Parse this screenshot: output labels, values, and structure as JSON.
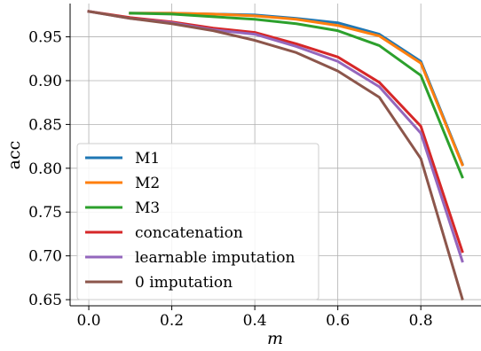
{
  "chart_data": {
    "type": "line",
    "title": "",
    "xlabel": "m",
    "ylabel": "acc",
    "xlim": [
      -0.045,
      0.945
    ],
    "ylim": [
      0.643,
      0.988
    ],
    "xticks": [
      0.0,
      0.2,
      0.4,
      0.6,
      0.8
    ],
    "xtick_labels": [
      "0.0",
      "0.2",
      "0.4",
      "0.6",
      "0.8"
    ],
    "yticks": [
      0.65,
      0.7,
      0.75,
      0.8,
      0.85,
      0.9,
      0.95
    ],
    "ytick_labels": [
      "0.65",
      "0.70",
      "0.75",
      "0.80",
      "0.85",
      "0.90",
      "0.95"
    ],
    "grid": true,
    "legend_position": "lower-left",
    "series": [
      {
        "name": "M1",
        "color": "#1f77b4",
        "x": [
          0.1,
          0.2,
          0.3,
          0.4,
          0.5,
          0.6,
          0.7,
          0.8,
          0.9
        ],
        "y": [
          0.977,
          0.977,
          0.976,
          0.975,
          0.971,
          0.966,
          0.953,
          0.922,
          0.805
        ]
      },
      {
        "name": "M2",
        "color": "#ff7f0e",
        "x": [
          0.1,
          0.2,
          0.3,
          0.4,
          0.5,
          0.6,
          0.7,
          0.8,
          0.9
        ],
        "y": [
          0.977,
          0.977,
          0.976,
          0.974,
          0.97,
          0.963,
          0.951,
          0.92,
          0.804
        ]
      },
      {
        "name": "M3",
        "color": "#2ca02c",
        "x": [
          0.1,
          0.2,
          0.3,
          0.4,
          0.5,
          0.6,
          0.7,
          0.8,
          0.9
        ],
        "y": [
          0.977,
          0.976,
          0.973,
          0.97,
          0.965,
          0.957,
          0.94,
          0.906,
          0.79
        ]
      },
      {
        "name": "concatenation",
        "color": "#d62728",
        "x": [
          0.0,
          0.1,
          0.2,
          0.3,
          0.4,
          0.5,
          0.6,
          0.7,
          0.8,
          0.9
        ],
        "y": [
          0.979,
          0.972,
          0.967,
          0.96,
          0.955,
          0.942,
          0.927,
          0.898,
          0.848,
          0.705
        ]
      },
      {
        "name": "learnable imputation",
        "color": "#9467bd",
        "x": [
          0.0,
          0.1,
          0.2,
          0.3,
          0.4,
          0.5,
          0.6,
          0.7,
          0.8,
          0.9
        ],
        "y": [
          0.979,
          0.971,
          0.966,
          0.958,
          0.953,
          0.939,
          0.922,
          0.893,
          0.84,
          0.694
        ]
      },
      {
        "name": "0 imputation",
        "color": "#8c564b",
        "x": [
          0.0,
          0.1,
          0.2,
          0.3,
          0.4,
          0.5,
          0.6,
          0.7,
          0.8,
          0.9
        ],
        "y": [
          0.979,
          0.971,
          0.965,
          0.957,
          0.946,
          0.932,
          0.911,
          0.881,
          0.811,
          0.651
        ]
      }
    ]
  }
}
